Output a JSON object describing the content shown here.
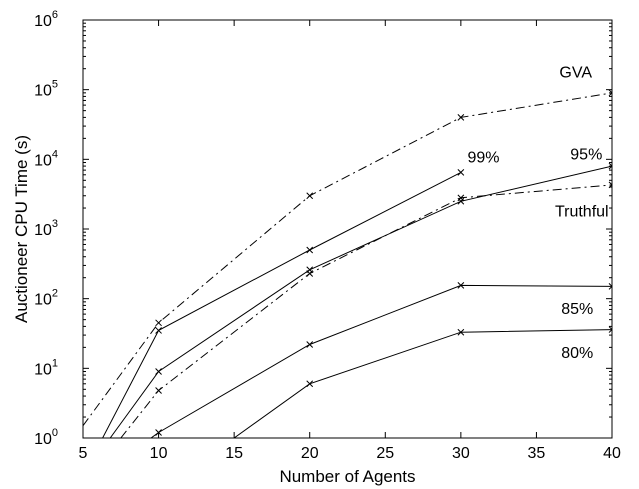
{
  "chart_data": {
    "type": "line",
    "xlabel": "Number of Agents",
    "ylabel": "Auctioneer CPU Time (s)",
    "xlim": [
      5,
      40
    ],
    "ylim": [
      1,
      1000000
    ],
    "yscale": "log",
    "grid": false,
    "x_ticks": [
      "5",
      "10",
      "15",
      "20",
      "25",
      "30",
      "35",
      "40"
    ],
    "y_ticks": [
      {
        "base": "10",
        "exp": "0",
        "value": 1
      },
      {
        "base": "10",
        "exp": "1",
        "value": 10
      },
      {
        "base": "10",
        "exp": "2",
        "value": 100
      },
      {
        "base": "10",
        "exp": "3",
        "value": 1000
      },
      {
        "base": "10",
        "exp": "4",
        "value": 10000
      },
      {
        "base": "10",
        "exp": "5",
        "value": 100000
      },
      {
        "base": "10",
        "exp": "6",
        "value": 1000000
      }
    ],
    "series": [
      {
        "name": "GVA",
        "style": "dash-dot",
        "x": [
          5,
          10,
          20,
          30,
          40
        ],
        "y": [
          1.5,
          45,
          3000,
          40000,
          90000
        ],
        "markers": [
          false,
          true,
          true,
          true,
          true
        ]
      },
      {
        "name": "99%",
        "style": "solid",
        "x": [
          6.3,
          10,
          20,
          30
        ],
        "y": [
          1,
          35,
          500,
          6500
        ],
        "markers": [
          false,
          true,
          true,
          true
        ]
      },
      {
        "name": "95%",
        "style": "solid",
        "x": [
          6.8,
          10,
          20,
          30,
          40
        ],
        "y": [
          1,
          9,
          260,
          2500,
          8000
        ],
        "markers": [
          false,
          true,
          true,
          true,
          true
        ]
      },
      {
        "name": "Truthful",
        "style": "dash-dot",
        "x": [
          7.5,
          10,
          20,
          30,
          40
        ],
        "y": [
          1,
          4.8,
          230,
          2800,
          4300
        ],
        "markers": [
          false,
          true,
          true,
          true,
          true
        ]
      },
      {
        "name": "85%",
        "style": "solid",
        "x": [
          9.5,
          10,
          20,
          30,
          40
        ],
        "y": [
          1,
          1.2,
          22,
          155,
          150
        ],
        "markers": [
          false,
          true,
          true,
          true,
          true
        ]
      },
      {
        "name": "80%",
        "style": "solid",
        "x": [
          15,
          20,
          30,
          40
        ],
        "y": [
          1,
          6,
          33,
          36
        ],
        "markers": [
          false,
          true,
          true,
          true
        ]
      }
    ],
    "annotations": [
      {
        "text": "GVA",
        "x": 37.6,
        "y": 150000
      },
      {
        "text": "99%",
        "x": 31.5,
        "y": 9000
      },
      {
        "text": "95%",
        "x": 38.3,
        "y": 10000
      },
      {
        "text": "Truthful",
        "x": 38.0,
        "y": 1500
      },
      {
        "text": "85%",
        "x": 37.7,
        "y": 60
      },
      {
        "text": "80%",
        "x": 37.7,
        "y": 14
      }
    ]
  }
}
